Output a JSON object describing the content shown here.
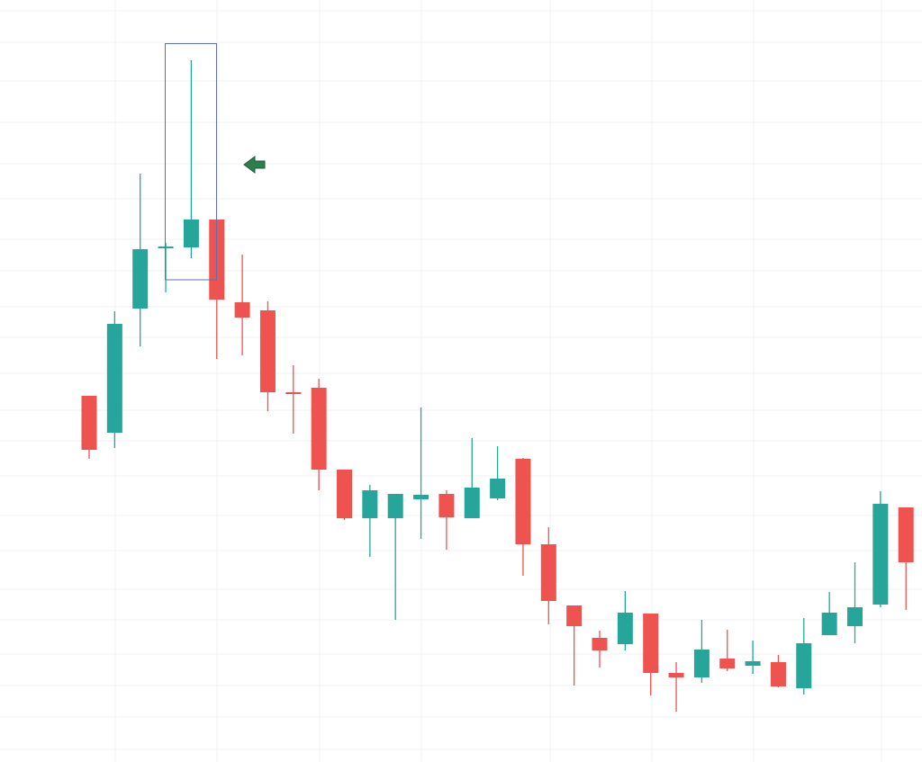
{
  "chart_data": {
    "type": "candlestick",
    "ylim": [
      0,
      847
    ],
    "up_color": "#26a69a",
    "down_color": "#ef5350",
    "series": [
      {
        "name": "open",
        "values": [
          407,
          366,
          504,
          571,
          572,
          603,
          511,
          502,
          411,
          416,
          325,
          271,
          271,
          292,
          298,
          271,
          293,
          337,
          242,
          174,
          138,
          131,
          165,
          99,
          94,
          115,
          107,
          111,
          82,
          141,
          151,
          175,
          283
        ]
      },
      {
        "name": "high",
        "values": [
          407,
          501,
          654,
          577,
          780,
          603,
          564,
          512,
          441,
          426,
          325,
          308,
          298,
          394,
          302,
          360,
          351,
          338,
          261,
          174,
          146,
          190,
          165,
          111,
          158,
          147,
          135,
          119,
          160,
          189,
          222,
          301,
          283
        ]
      },
      {
        "name": "low",
        "values": [
          337,
          349,
          462,
          522,
          560,
          448,
          452,
          390,
          365,
          302,
          269,
          228,
          158,
          248,
          236,
          271,
          291,
          207,
          153,
          85,
          105,
          124,
          74,
          56,
          88,
          101,
          98,
          83,
          75,
          141,
          132,
          172,
          169
        ]
      },
      {
        "name": "close",
        "values": [
          347,
          487,
          570,
          573,
          603,
          514,
          494,
          411,
          409,
          325,
          271,
          302,
          298,
          297,
          272,
          305,
          315,
          242,
          179,
          151,
          124,
          166,
          99,
          94,
          125,
          104,
          112,
          84,
          132,
          166,
          172,
          287,
          222
        ]
      }
    ]
  }
}
